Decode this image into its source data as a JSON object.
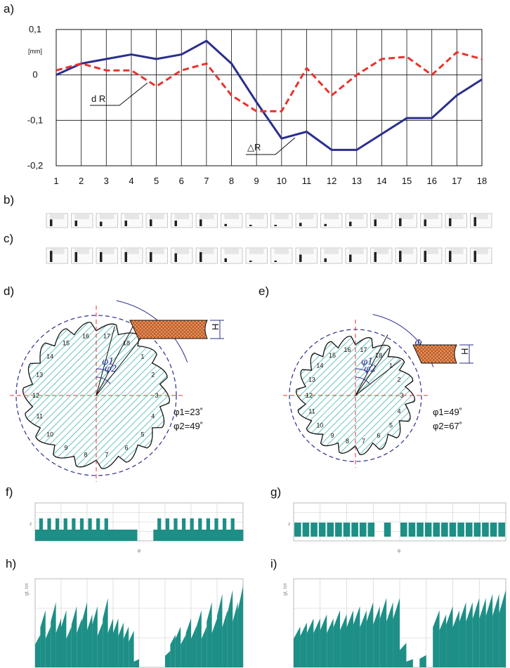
{
  "panel_labels": [
    "a)",
    "b)",
    "c)",
    "d)",
    "e)",
    "f)",
    "g)",
    "h)",
    "i)"
  ],
  "colors": {
    "delta_r": "#2b2f8c",
    "d_r": "#e8332e",
    "teal": "#1d8f86",
    "hatch": "#2aa9a0",
    "block": "#d3691f"
  },
  "chart_data": {
    "type": "line",
    "x": [
      1,
      2,
      3,
      4,
      5,
      6,
      7,
      8,
      9,
      10,
      11,
      12,
      13,
      14,
      15,
      16,
      17,
      18
    ],
    "ylim": [
      -0.2,
      0.1
    ],
    "y_tick_labels": [
      "0,1",
      "0",
      "-0,1",
      "-0,2"
    ],
    "y_unit": "[mm]",
    "grid": true,
    "series": [
      {
        "name": "△R",
        "style": "solid",
        "color": "#2b2f8c",
        "values": [
          0.0,
          0.025,
          0.035,
          0.045,
          0.035,
          0.045,
          0.075,
          0.025,
          -0.06,
          -0.14,
          -0.125,
          -0.165,
          -0.165,
          -0.13,
          -0.095,
          -0.095,
          -0.045,
          -0.01
        ]
      },
      {
        "name": "d R",
        "style": "dashed",
        "color": "#e8332e",
        "values": [
          0.01,
          0.025,
          0.01,
          0.01,
          -0.025,
          0.01,
          0.025,
          -0.045,
          -0.08,
          -0.08,
          0.015,
          -0.045,
          0.0,
          0.035,
          0.04,
          0.0,
          0.05,
          0.035
        ]
      }
    ]
  },
  "strip_b": [
    0.6,
    0.5,
    0.4,
    0.5,
    0.6,
    0.5,
    0.6,
    0.2,
    0.0,
    0.0,
    0.3,
    0.2,
    0.4,
    0.6,
    0.7,
    0.6,
    0.7,
    0.8
  ],
  "strip_c": [
    0.9,
    0.8,
    0.8,
    0.8,
    0.8,
    0.7,
    0.8,
    0.3,
    0.1,
    0.1,
    0.6,
    0.3,
    0.6,
    0.8,
    0.9,
    0.9,
    0.9,
    0.9
  ],
  "wheel_d": {
    "labels": [
      "1",
      "2",
      "3",
      "4",
      "5",
      "6",
      "7",
      "8",
      "9",
      "10",
      "11",
      "12",
      "13",
      "14",
      "15",
      "16",
      "17",
      "18"
    ],
    "phi1_label": "φ1",
    "phi2_label": "φ2",
    "phi_label": "Φ",
    "h_label": "H",
    "caption1": "φ1=23˚",
    "caption2": "φ2=49˚"
  },
  "wheel_e": {
    "labels": [
      "1",
      "2",
      "3",
      "4",
      "5",
      "6",
      "7",
      "8",
      "9",
      "10",
      "11",
      "12",
      "13",
      "14",
      "15",
      "16",
      "17",
      "18"
    ],
    "phi1_label": "φ1",
    "phi2_label": "φ2",
    "phi_label": "Φ",
    "h_label": "H",
    "caption1": "φ1=49˚",
    "caption2": "φ2=67˚"
  },
  "bars_f": {
    "axis_label": "φ",
    "y_label": "z",
    "base": [
      1,
      1,
      1,
      1,
      1,
      1,
      1,
      1,
      1,
      1,
      1,
      1,
      1,
      1,
      1,
      1,
      1,
      1,
      1,
      1,
      1,
      1,
      1,
      1,
      1,
      0,
      0,
      0,
      0,
      1,
      1,
      1,
      1,
      1,
      1,
      1,
      1,
      1,
      1,
      1,
      1,
      1,
      1,
      1,
      1,
      1,
      1,
      1,
      1,
      1,
      1
    ],
    "teeth": [
      0,
      2,
      0,
      2,
      0,
      2,
      0,
      2,
      0,
      2,
      0,
      2,
      0,
      2,
      0,
      2,
      0,
      2,
      0,
      0,
      0,
      0,
      0,
      0,
      0,
      0,
      0,
      0,
      0,
      0,
      2,
      0,
      2,
      0,
      2,
      0,
      2,
      0,
      2,
      0,
      2,
      0,
      2,
      0,
      2,
      0,
      2,
      0,
      2,
      0,
      0
    ]
  },
  "bars_g": {
    "axis_label": "φ",
    "y_label": "z",
    "segments": [
      1,
      1,
      1,
      1,
      1,
      1,
      1,
      1,
      1,
      1,
      0,
      1,
      0,
      1,
      1,
      1,
      1,
      1,
      1,
      1,
      1,
      1,
      1,
      1,
      1,
      1
    ]
  },
  "bars_h": {
    "y_label": "gt, tot",
    "profile": [
      0.4,
      0.7,
      0.5,
      0.8,
      0.6,
      0.7,
      0.5,
      0.75,
      0.6,
      0.8,
      0.65,
      0.75,
      0.55,
      0.85,
      0.6,
      0.6,
      0.55,
      0.5,
      0.45,
      0.1,
      0.0,
      0.0,
      0.0,
      0.0,
      0.0,
      0.2,
      0.4,
      0.5,
      0.4,
      0.6,
      0.5,
      0.7,
      0.5,
      0.8,
      0.6,
      0.9,
      0.7,
      0.95,
      0.8,
      1.0
    ]
  },
  "bars_i": {
    "y_label": "gt, tot",
    "profile": [
      0.5,
      0.55,
      0.6,
      0.6,
      0.65,
      0.6,
      0.7,
      0.65,
      0.7,
      0.75,
      0.7,
      0.8,
      0.75,
      0.85,
      0.8,
      0.85,
      0.3,
      0.1,
      0.0,
      0.15,
      0.0,
      0.7,
      0.65,
      0.75,
      0.7,
      0.8,
      0.8,
      0.85,
      0.85,
      0.9,
      0.9,
      0.95
    ]
  }
}
